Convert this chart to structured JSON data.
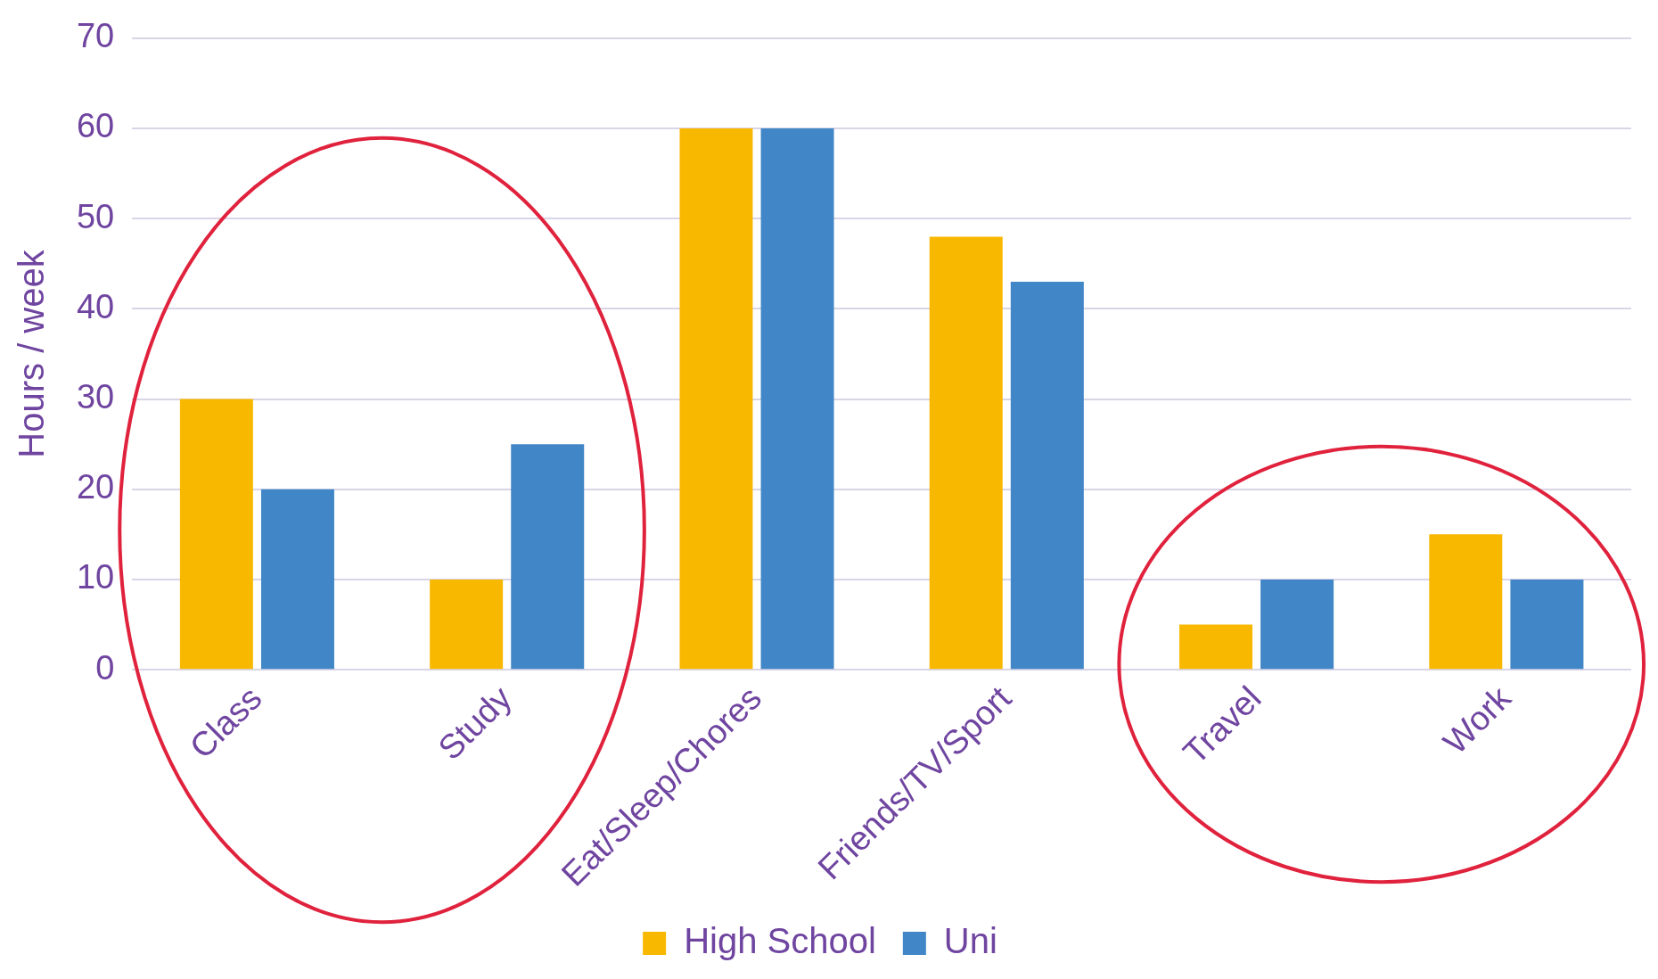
{
  "chart_data": {
    "type": "bar",
    "ylabel": "Hours / week",
    "categories": [
      "Class",
      "Study",
      "Eat/Sleep/Chores",
      "Friends/TV/Sport",
      "Travel",
      "Work"
    ],
    "series": [
      {
        "name": "High School",
        "color": "#f9b800",
        "values": [
          30,
          10,
          60,
          48,
          5,
          15
        ]
      },
      {
        "name": "Uni",
        "color": "#4186c6",
        "values": [
          20,
          25,
          60,
          43,
          10,
          10
        ]
      }
    ],
    "ylim": [
      0,
      70
    ],
    "yticks": [
      0,
      10,
      20,
      30,
      40,
      50,
      60,
      70
    ],
    "grid": "y",
    "legend": "bottom"
  }
}
